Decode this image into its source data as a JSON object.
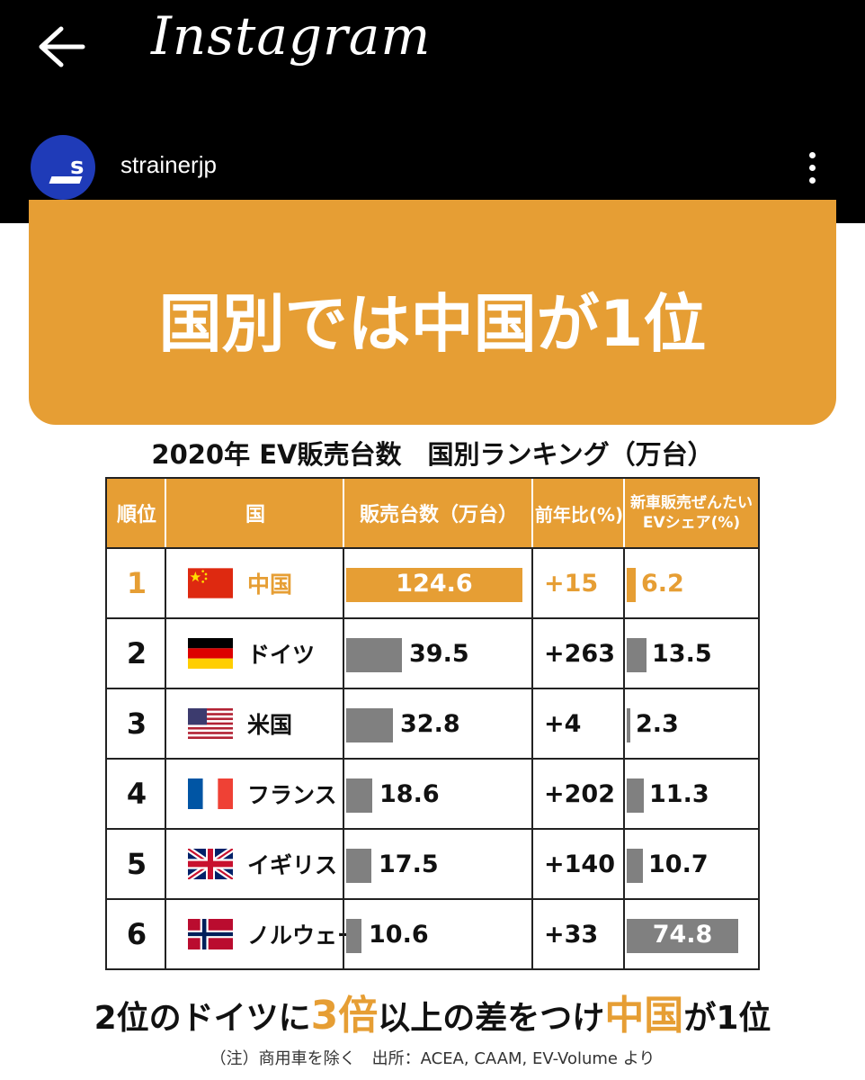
{
  "header": {
    "app_title": "Instagram",
    "username": "strainerjp",
    "avatar_letter": "s"
  },
  "post": {
    "banner_title": "国別では中国が1位",
    "table_title": "2020年 EV販売台数　国別ランキング（万台）",
    "columns": [
      "順位",
      "国",
      "販売台数（万台）",
      "前年比(%)",
      "新車販売ぜんたい",
      "EVシェア(%)"
    ],
    "rows": [
      {
        "rank": "1",
        "country": "中国",
        "sales": "124.6",
        "yoy": "+15",
        "share": "6.2"
      },
      {
        "rank": "2",
        "country": "ドイツ",
        "sales": "39.5",
        "yoy": "+263",
        "share": "13.5"
      },
      {
        "rank": "3",
        "country": "米国",
        "sales": "32.8",
        "yoy": "+4",
        "share": "2.3"
      },
      {
        "rank": "4",
        "country": "フランス",
        "sales": "18.6",
        "yoy": "+202",
        "share": "11.3"
      },
      {
        "rank": "5",
        "country": "イギリス",
        "sales": "17.5",
        "yoy": "+140",
        "share": "10.7"
      },
      {
        "rank": "6",
        "country": "ノルウェー",
        "sales": "10.6",
        "yoy": "+33",
        "share": "74.8"
      }
    ],
    "caption_parts": [
      "2位のドイツに",
      "3倍",
      "以上の差をつけ",
      "中国",
      "が1位"
    ],
    "note": "（注）商用車を除く　出所：ACEA, CAAM, EV-Volume より",
    "accent_color": "#e69e34"
  },
  "chart_data": {
    "type": "table",
    "title": "2020年 EV販売台数　国別ランキング（万台）",
    "categories": [
      "中国",
      "ドイツ",
      "米国",
      "フランス",
      "イギリス",
      "ノルウェー"
    ],
    "series": [
      {
        "name": "販売台数（万台）",
        "values": [
          124.6,
          39.5,
          32.8,
          18.6,
          17.5,
          10.6
        ]
      },
      {
        "name": "前年比(%)",
        "values": [
          15,
          263,
          4,
          202,
          140,
          33
        ]
      },
      {
        "name": "EVシェア(%)",
        "values": [
          6.2,
          13.5,
          2.3,
          11.3,
          10.7,
          74.8
        ]
      }
    ]
  }
}
